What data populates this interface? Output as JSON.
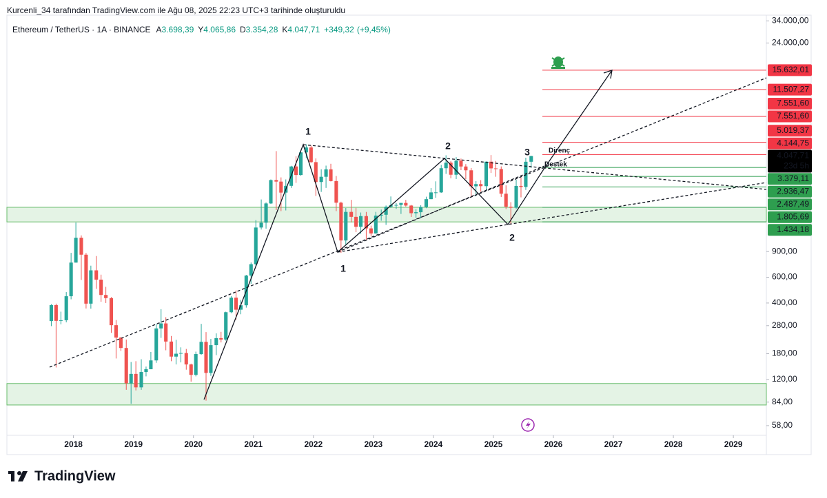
{
  "credit": "Kurcenli_34 tarafından TradingView.com ile Ağu 08, 2025 22:23 UTC+3 tarihinde oluşturuldu",
  "brand": "TradingView",
  "chart_data": {
    "type": "candlestick",
    "symbol": "Ethereum / TetherUS · 1A · BINANCE",
    "ohlc_prefixes": [
      "A",
      "Y",
      "D",
      "K"
    ],
    "readout": [
      {
        "value": 3698.39,
        "label": "3.698,39"
      },
      {
        "value": 4065.86,
        "label": "4.065,86"
      },
      {
        "value": 3354.28,
        "label": "3.354,28"
      },
      {
        "value": 4047.71,
        "label": "4.047,71"
      }
    ],
    "change": {
      "value": 349.32,
      "label": "+349,32"
    },
    "change_pct": {
      "value": 9.45,
      "label": "(+9,45%)"
    },
    "up_color": "#26a69a",
    "down_color": "#ef5350",
    "log_scale": true,
    "xlim": [
      2016.89,
      2029.55
    ],
    "xticks": [
      2018,
      2019,
      2020,
      2021,
      2022,
      2023,
      2024,
      2025,
      2026,
      2027,
      2028,
      2029
    ],
    "ylim": [
      49.8,
      37200
    ],
    "yticks": [
      {
        "value": 34000,
        "label": "34.000,00"
      },
      {
        "value": 24000,
        "label": "24.000,00"
      },
      {
        "value": 900,
        "label": "900,00"
      },
      {
        "value": 600,
        "label": "600,00"
      },
      {
        "value": 400,
        "label": "400,00"
      },
      {
        "value": 280,
        "label": "280,00"
      },
      {
        "value": 180,
        "label": "180,00"
      },
      {
        "value": 120,
        "label": "120,00"
      },
      {
        "value": 84,
        "label": "84,00"
      },
      {
        "value": 58,
        "label": "58,00"
      }
    ],
    "x": [
      2017.63,
      2017.71,
      2017.79,
      2017.88,
      2017.96,
      2018.04,
      2018.13,
      2018.21,
      2018.29,
      2018.38,
      2018.46,
      2018.54,
      2018.63,
      2018.71,
      2018.79,
      2018.88,
      2018.96,
      2019.04,
      2019.13,
      2019.21,
      2019.29,
      2019.38,
      2019.46,
      2019.54,
      2019.63,
      2019.71,
      2019.79,
      2019.88,
      2019.96,
      2020.04,
      2020.13,
      2020.21,
      2020.29,
      2020.38,
      2020.46,
      2020.54,
      2020.63,
      2020.71,
      2020.79,
      2020.88,
      2020.96,
      2021.04,
      2021.13,
      2021.21,
      2021.29,
      2021.38,
      2021.46,
      2021.54,
      2021.63,
      2021.71,
      2021.79,
      2021.88,
      2021.96,
      2022.04,
      2022.13,
      2022.21,
      2022.29,
      2022.38,
      2022.46,
      2022.54,
      2022.63,
      2022.71,
      2022.79,
      2022.88,
      2022.96,
      2023.04,
      2023.13,
      2023.21,
      2023.29,
      2023.38,
      2023.46,
      2023.54,
      2023.63,
      2023.71,
      2023.79,
      2023.88,
      2023.96,
      2024.04,
      2024.13,
      2024.21,
      2024.29,
      2024.38,
      2024.46,
      2024.54,
      2024.63,
      2024.71,
      2024.79,
      2024.88,
      2024.96,
      2025.04,
      2025.13,
      2025.21,
      2025.29,
      2025.38,
      2025.46,
      2025.54,
      2025.63
    ],
    "open": [
      301,
      387,
      302,
      305,
      445,
      756,
      1118,
      856,
      396,
      669,
      578,
      454,
      432,
      282,
      232,
      197,
      113,
      131,
      106,
      135,
      141,
      162,
      268,
      290,
      218,
      172,
      180,
      182,
      152,
      129,
      179,
      217,
      133,
      206,
      230,
      225,
      346,
      435,
      360,
      386,
      616,
      737,
      1313,
      1417,
      1918,
      2772,
      2706,
      2275,
      2531,
      3434,
      3000,
      4287,
      4631,
      3676,
      2688,
      2919,
      3282,
      2728,
      1941,
      1071,
      1679,
      1553,
      1328,
      1572,
      1295,
      1196,
      1585,
      1605,
      1822,
      1869,
      1874,
      1934,
      1856,
      1645,
      1671,
      1815,
      2052,
      2282,
      2283,
      3340,
      3647,
      3014,
      3761,
      3432,
      3232,
      2513,
      2602,
      2518,
      3703,
      3332,
      3298,
      2237,
      1822,
      1793,
      2528,
      2486,
      3698.39
    ],
    "high": [
      393,
      396,
      349,
      475,
      881,
      1420,
      1160,
      880,
      720,
      838,
      625,
      516,
      439,
      306,
      234,
      225,
      158,
      160,
      165,
      147,
      185,
      287,
      363,
      320,
      238,
      224,
      199,
      194,
      154,
      186,
      288,
      253,
      227,
      248,
      254,
      349,
      445,
      488,
      420,
      623,
      757,
      1476,
      2042,
      1950,
      2800,
      4372,
      2891,
      2800,
      3470,
      4027,
      4460,
      4868,
      4778,
      3900,
      3285,
      3480,
      3582,
      2955,
      1972,
      1785,
      2030,
      1789,
      1663,
      1678,
      1353,
      1680,
      1742,
      1857,
      2141,
      1928,
      1935,
      2029,
      1875,
      1751,
      1865,
      2133,
      2446,
      2717,
      3522,
      4094,
      3730,
      3977,
      3887,
      3563,
      3350,
      2728,
      2769,
      3720,
      4108,
      3745,
      3436,
      2550,
      1957,
      2788,
      2880,
      3941,
      4065.86
    ],
    "low": [
      278,
      145,
      286,
      295,
      424,
      755,
      575,
      367,
      366,
      500,
      408,
      400,
      250,
      167,
      188,
      102,
      81.8,
      101,
      102,
      126,
      141,
      156,
      231,
      190,
      160,
      152,
      157,
      140,
      116,
      126,
      177,
      86,
      127,
      176,
      215,
      221,
      341,
      308,
      335,
      372,
      540,
      714,
      1272,
      1290,
      1906,
      1728,
      1700,
      1718,
      2450,
      2652,
      2970,
      3920,
      3643,
      2159,
      2300,
      2450,
      2711,
      1700,
      881,
      1006,
      1422,
      1220,
      1190,
      1073,
      1150,
      1190,
      1461,
      1368,
      1785,
      1760,
      1626,
      1826,
      1550,
      1531,
      1521,
      1780,
      2050,
      2100,
      2266,
      3056,
      2852,
      2817,
      3240,
      2810,
      2111,
      2150,
      2310,
      2357,
      3099,
      2920,
      2125,
      1755,
      1385,
      1753,
      2111,
      2373,
      3354.28
    ],
    "close": [
      387,
      302,
      305,
      445,
      756,
      1118,
      856,
      396,
      669,
      578,
      454,
      432,
      282,
      232,
      197,
      113,
      131,
      106,
      135,
      141,
      162,
      268,
      290,
      218,
      172,
      180,
      182,
      152,
      129,
      179,
      217,
      133,
      206,
      230,
      225,
      346,
      435,
      360,
      386,
      616,
      737,
      1313,
      1417,
      1918,
      2772,
      2706,
      2275,
      2531,
      3434,
      3000,
      4287,
      4631,
      3676,
      2688,
      2919,
      3282,
      2728,
      1941,
      1071,
      1679,
      1553,
      1328,
      1572,
      1295,
      1196,
      1585,
      1605,
      1822,
      1869,
      1874,
      1934,
      1856,
      1645,
      1671,
      1815,
      2052,
      2282,
      2283,
      3340,
      3647,
      3014,
      3761,
      3432,
      3232,
      2513,
      2602,
      2518,
      3703,
      3332,
      3298,
      2237,
      1822,
      1793,
      2528,
      2486,
      3698.39,
      4047.71
    ],
    "zones": [
      [
        80.3,
        112.6
      ],
      [
        1434.18,
        1805.69
      ]
    ],
    "zone_color": "rgba(76,175,80,0.15)",
    "levels": [
      {
        "value": 15632.01,
        "label": "15.632,01",
        "color": "#f23645"
      },
      {
        "value": 11507.27,
        "label": "11.507,27",
        "color": "#f23645"
      },
      {
        "value": 7551.6,
        "label": "7.551,60",
        "color": "#f23645"
      },
      {
        "value": 7551.6,
        "label": "7.551,60",
        "color": "#f23645"
      },
      {
        "value": 5019.37,
        "label": "5.019,37",
        "color": "#f23645"
      },
      {
        "value": 4144.75,
        "label": "4.144,75",
        "color": "#f23645"
      },
      {
        "value": 3379.11,
        "label": "3.379,11",
        "color": "#2e9e4f"
      },
      {
        "value": 2936.47,
        "label": "2.936,47",
        "color": "#2e9e4f"
      },
      {
        "value": 2487.49,
        "label": "2.487,49",
        "color": "#2e9e4f"
      },
      {
        "value": 1805.69,
        "label": "1.805,69",
        "color": "#2e9e4f"
      },
      {
        "value": 1434.18,
        "label": "1.434,18",
        "color": "#2e9e4f"
      }
    ],
    "last_price": {
      "value": 4047.71,
      "label": "4.047,71"
    },
    "countdown": "23d 5h",
    "annotations": [
      "1",
      "1",
      "2",
      "2",
      "3",
      "Direnç",
      "Destek"
    ]
  }
}
